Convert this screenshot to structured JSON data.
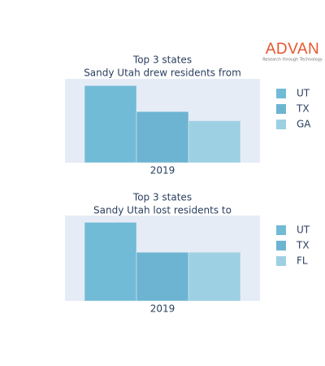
{
  "logo": {
    "name": "ADVAN",
    "tagline": "Research through Technology"
  },
  "chart_data": [
    {
      "type": "bar",
      "title": [
        "Top 3 states",
        "Sandy Utah drew residents from"
      ],
      "categories": [
        "2019"
      ],
      "series": [
        {
          "name": "UT",
          "color": "#72bbd6",
          "values": [
            92
          ]
        },
        {
          "name": "TX",
          "color": "#6db4d2",
          "values": [
            61
          ]
        },
        {
          "name": "GA",
          "color": "#9dd0e2",
          "values": [
            50
          ]
        }
      ],
      "ylim": [
        0,
        100
      ],
      "background": "#e5ecf6"
    },
    {
      "type": "bar",
      "title": [
        "Top 3 states",
        "Sandy Utah lost residents to"
      ],
      "categories": [
        "2019"
      ],
      "series": [
        {
          "name": "UT",
          "color": "#72bbd6",
          "values": [
            92
          ]
        },
        {
          "name": "TX",
          "color": "#6db4d2",
          "values": [
            57
          ]
        },
        {
          "name": "FL",
          "color": "#9dd0e2",
          "values": [
            57
          ]
        }
      ],
      "ylim": [
        0,
        100
      ],
      "background": "#e5ecf6"
    }
  ]
}
